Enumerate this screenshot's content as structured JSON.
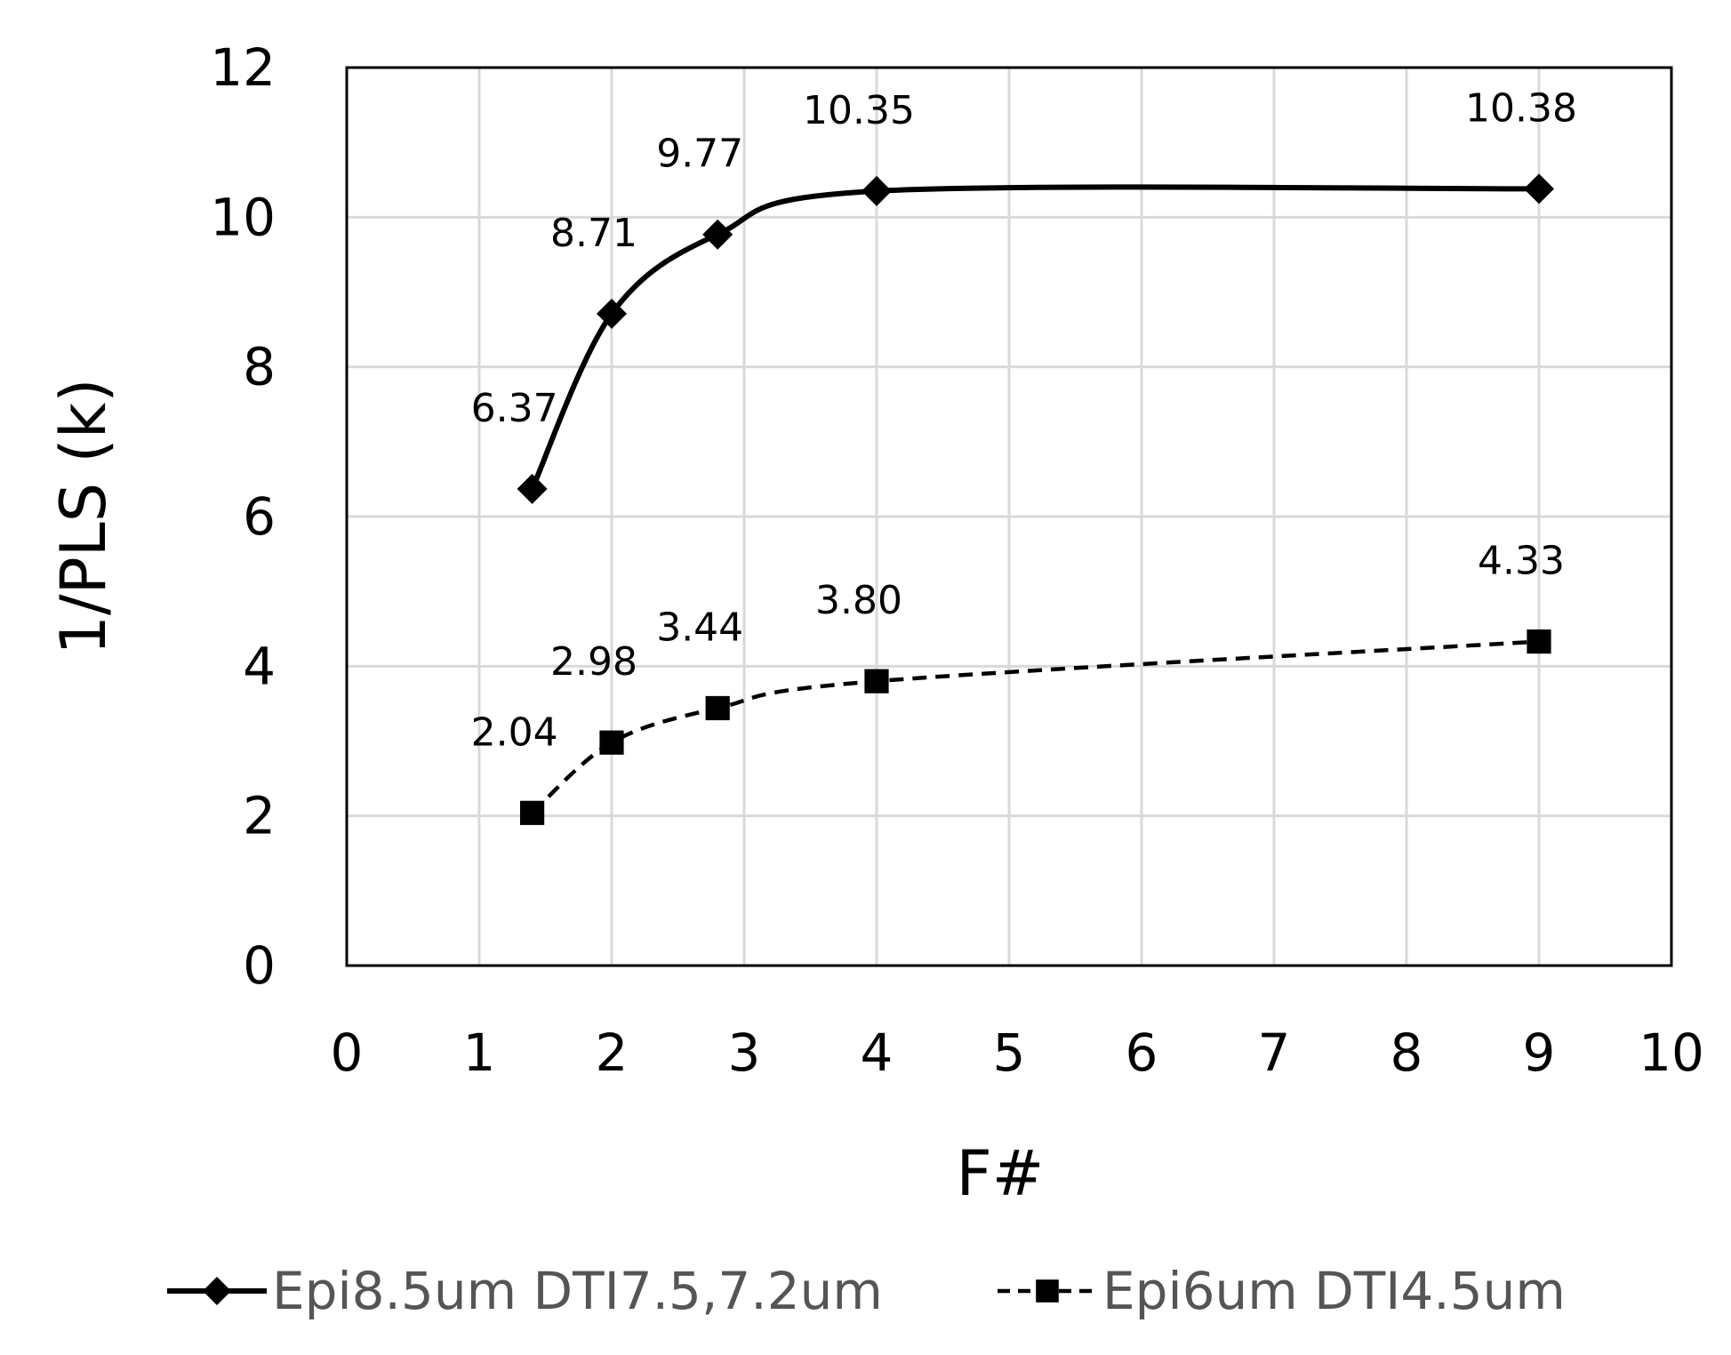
{
  "chart_data": {
    "type": "line",
    "title": "",
    "xlabel": "F#",
    "ylabel": "1/PLS (k)",
    "xlim": [
      0,
      10
    ],
    "ylim": [
      0,
      12
    ],
    "x_ticks": [
      "0",
      "1",
      "2",
      "3",
      "4",
      "5",
      "6",
      "7",
      "8",
      "9",
      "10"
    ],
    "y_ticks": [
      "0",
      "2",
      "4",
      "6",
      "8",
      "10",
      "12"
    ],
    "grid": true,
    "legend_position": "bottom",
    "series": [
      {
        "name": "Epi8.5um DTI7.5,7.2um",
        "marker": "diamond",
        "line_style": "solid",
        "smooth": true,
        "color": "#000000",
        "x": [
          1.4,
          2.0,
          2.8,
          4.0,
          9.0
        ],
        "values": [
          6.37,
          8.71,
          9.77,
          10.35,
          10.38
        ],
        "labels": [
          "6.37",
          "8.71",
          "9.77",
          "10.35",
          "10.38"
        ]
      },
      {
        "name": "Epi6um DTI4.5um",
        "marker": "square",
        "line_style": "dashed",
        "smooth": true,
        "color": "#000000",
        "x": [
          1.4,
          2.0,
          2.8,
          4.0,
          9.0
        ],
        "values": [
          2.04,
          2.98,
          3.44,
          3.8,
          4.33
        ],
        "labels": [
          "2.04",
          "2.98",
          "3.44",
          "3.80",
          "4.33"
        ]
      }
    ]
  }
}
